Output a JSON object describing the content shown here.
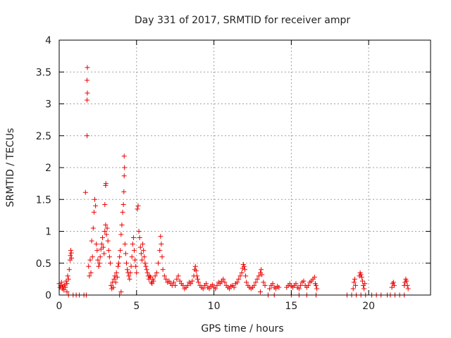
{
  "chart_data": {
    "type": "scatter",
    "title": "Day 331 of 2017, SRMTID for receiver ampr",
    "xlabel": "GPS time / hours",
    "ylabel": "SRMTID / TECUs",
    "xlim": [
      0,
      24
    ],
    "ylim": [
      0,
      4
    ],
    "xticks": [
      0,
      5,
      10,
      15,
      20
    ],
    "yticks": [
      0,
      0.5,
      1,
      1.5,
      2,
      2.5,
      3,
      3.5,
      4
    ],
    "xtick_labels": [
      "0",
      "5",
      "10",
      "15",
      "20"
    ],
    "ytick_labels": [
      "0",
      "0.5",
      "1",
      "1.5",
      "2",
      "2.5",
      "3",
      "3.5",
      "4"
    ],
    "grid": true,
    "marker": "+",
    "series": [
      {
        "name": "ampr",
        "color": "#ee0000",
        "points": [
          [
            0.0,
            0.18
          ],
          [
            0.05,
            0.12
          ],
          [
            0.1,
            0.15
          ],
          [
            0.15,
            0.2
          ],
          [
            0.2,
            0.1
          ],
          [
            0.25,
            0.14
          ],
          [
            0.3,
            0.08
          ],
          [
            0.35,
            0.16
          ],
          [
            0.4,
            0.12
          ],
          [
            0.45,
            0.22
          ],
          [
            0.5,
            0.18
          ],
          [
            0.55,
            0.3
          ],
          [
            0.6,
            0.25
          ],
          [
            0.65,
            0.4
          ],
          [
            0.7,
            0.55
          ],
          [
            0.72,
            0.62
          ],
          [
            0.75,
            0.7
          ],
          [
            0.78,
            0.66
          ],
          [
            0.8,
            0.58
          ],
          [
            0.5,
            0.05
          ],
          [
            0.6,
            0.0
          ],
          [
            0.9,
            0.0
          ],
          [
            1.1,
            0.0
          ],
          [
            1.3,
            0.0
          ],
          [
            1.6,
            0.0
          ],
          [
            1.75,
            0.0
          ],
          [
            1.7,
            1.61
          ],
          [
            1.8,
            2.5
          ],
          [
            1.8,
            3.06
          ],
          [
            1.82,
            3.17
          ],
          [
            1.8,
            3.37
          ],
          [
            1.82,
            3.57
          ],
          [
            1.9,
            0.45
          ],
          [
            1.95,
            0.3
          ],
          [
            2.0,
            0.55
          ],
          [
            2.05,
            0.35
          ],
          [
            2.1,
            0.85
          ],
          [
            2.15,
            0.6
          ],
          [
            2.2,
            1.05
          ],
          [
            2.25,
            1.3
          ],
          [
            2.3,
            1.5
          ],
          [
            2.35,
            1.4
          ],
          [
            2.4,
            0.8
          ],
          [
            2.45,
            0.7
          ],
          [
            2.5,
            0.55
          ],
          [
            2.55,
            0.45
          ],
          [
            2.6,
            0.5
          ],
          [
            2.65,
            0.6
          ],
          [
            2.7,
            0.72
          ],
          [
            2.75,
            0.8
          ],
          [
            2.8,
            0.9
          ],
          [
            2.85,
            0.75
          ],
          [
            2.9,
            0.65
          ],
          [
            2.95,
            1.0
          ],
          [
            3.0,
            1.1
          ],
          [
            3.05,
            0.95
          ],
          [
            3.1,
            1.05
          ],
          [
            3.15,
            0.85
          ],
          [
            3.2,
            0.7
          ],
          [
            3.25,
            0.6
          ],
          [
            3.3,
            0.5
          ],
          [
            2.95,
            1.42
          ],
          [
            3.0,
            1.72
          ],
          [
            3.02,
            1.75
          ],
          [
            3.35,
            0.15
          ],
          [
            3.4,
            0.1
          ],
          [
            3.45,
            0.2
          ],
          [
            3.5,
            0.12
          ],
          [
            3.55,
            0.25
          ],
          [
            3.6,
            0.3
          ],
          [
            3.65,
            0.2
          ],
          [
            3.7,
            0.35
          ],
          [
            3.75,
            0.28
          ],
          [
            3.8,
            0.45
          ],
          [
            3.85,
            0.5
          ],
          [
            3.9,
            0.6
          ],
          [
            3.95,
            0.7
          ],
          [
            4.0,
            0.95
          ],
          [
            4.05,
            1.1
          ],
          [
            4.1,
            1.3
          ],
          [
            4.15,
            1.42
          ],
          [
            4.18,
            1.62
          ],
          [
            4.2,
            1.87
          ],
          [
            4.22,
            2.0
          ],
          [
            4.2,
            2.18
          ],
          [
            4.25,
            0.8
          ],
          [
            4.3,
            0.65
          ],
          [
            4.35,
            0.5
          ],
          [
            4.4,
            0.4
          ],
          [
            4.45,
            0.35
          ],
          [
            4.5,
            0.3
          ],
          [
            4.55,
            0.25
          ],
          [
            4.6,
            0.35
          ],
          [
            4.65,
            0.45
          ],
          [
            4.7,
            0.6
          ],
          [
            4.75,
            0.8
          ],
          [
            4.8,
            0.9
          ],
          [
            4.85,
            0.7
          ],
          [
            4.9,
            0.55
          ],
          [
            4.95,
            0.45
          ],
          [
            5.0,
            0.35
          ],
          [
            3.9,
            0.0
          ],
          [
            4.0,
            0.05
          ],
          [
            5.05,
            1.35
          ],
          [
            5.1,
            1.4
          ],
          [
            5.15,
            1.0
          ],
          [
            5.2,
            0.9
          ],
          [
            5.25,
            0.75
          ],
          [
            5.3,
            0.65
          ],
          [
            5.35,
            0.55
          ],
          [
            5.4,
            0.8
          ],
          [
            5.45,
            0.7
          ],
          [
            5.5,
            0.6
          ],
          [
            5.55,
            0.5
          ],
          [
            5.6,
            0.45
          ],
          [
            5.65,
            0.4
          ],
          [
            5.7,
            0.35
          ],
          [
            5.75,
            0.3
          ],
          [
            5.8,
            0.25
          ],
          [
            5.85,
            0.3
          ],
          [
            5.9,
            0.28
          ],
          [
            5.95,
            0.2
          ],
          [
            6.0,
            0.18
          ],
          [
            6.05,
            0.25
          ],
          [
            6.1,
            0.22
          ],
          [
            6.2,
            0.3
          ],
          [
            6.3,
            0.35
          ],
          [
            6.4,
            0.5
          ],
          [
            6.5,
            0.7
          ],
          [
            6.55,
            0.92
          ],
          [
            6.6,
            0.8
          ],
          [
            6.65,
            0.6
          ],
          [
            6.7,
            0.4
          ],
          [
            6.8,
            0.3
          ],
          [
            6.9,
            0.25
          ],
          [
            7.0,
            0.2
          ],
          [
            7.1,
            0.22
          ],
          [
            7.2,
            0.18
          ],
          [
            7.3,
            0.15
          ],
          [
            7.4,
            0.2
          ],
          [
            7.5,
            0.15
          ],
          [
            7.6,
            0.25
          ],
          [
            7.7,
            0.3
          ],
          [
            7.8,
            0.22
          ],
          [
            7.9,
            0.18
          ],
          [
            8.0,
            0.15
          ],
          [
            8.1,
            0.1
          ],
          [
            8.2,
            0.12
          ],
          [
            8.3,
            0.15
          ],
          [
            8.4,
            0.2
          ],
          [
            8.5,
            0.18
          ],
          [
            8.6,
            0.22
          ],
          [
            8.7,
            0.3
          ],
          [
            8.75,
            0.4
          ],
          [
            8.8,
            0.45
          ],
          [
            8.85,
            0.38
          ],
          [
            8.9,
            0.3
          ],
          [
            8.95,
            0.25
          ],
          [
            9.0,
            0.2
          ],
          [
            9.1,
            0.15
          ],
          [
            9.2,
            0.12
          ],
          [
            9.3,
            0.1
          ],
          [
            9.4,
            0.15
          ],
          [
            9.5,
            0.18
          ],
          [
            9.6,
            0.12
          ],
          [
            9.7,
            0.1
          ],
          [
            9.8,
            0.14
          ],
          [
            9.9,
            0.16
          ],
          [
            10.0,
            0.12
          ],
          [
            10.1,
            0.1
          ],
          [
            10.2,
            0.15
          ],
          [
            10.3,
            0.2
          ],
          [
            10.4,
            0.18
          ],
          [
            10.5,
            0.22
          ],
          [
            10.6,
            0.25
          ],
          [
            10.7,
            0.2
          ],
          [
            10.8,
            0.15
          ],
          [
            10.9,
            0.12
          ],
          [
            11.0,
            0.1
          ],
          [
            11.1,
            0.14
          ],
          [
            11.2,
            0.15
          ],
          [
            11.3,
            0.12
          ],
          [
            11.4,
            0.18
          ],
          [
            11.5,
            0.2
          ],
          [
            11.6,
            0.25
          ],
          [
            11.7,
            0.3
          ],
          [
            11.8,
            0.35
          ],
          [
            11.85,
            0.42
          ],
          [
            11.9,
            0.48
          ],
          [
            11.95,
            0.45
          ],
          [
            12.0,
            0.4
          ],
          [
            12.05,
            0.3
          ],
          [
            12.1,
            0.2
          ],
          [
            12.2,
            0.15
          ],
          [
            12.3,
            0.12
          ],
          [
            12.4,
            0.1
          ],
          [
            12.5,
            0.12
          ],
          [
            12.6,
            0.15
          ],
          [
            12.7,
            0.2
          ],
          [
            12.8,
            0.25
          ],
          [
            12.9,
            0.3
          ],
          [
            13.0,
            0.35
          ],
          [
            13.05,
            0.4
          ],
          [
            13.1,
            0.32
          ],
          [
            13.2,
            0.2
          ],
          [
            13.3,
            0.15
          ],
          [
            13.0,
            0.05
          ],
          [
            13.6,
            0.1
          ],
          [
            13.7,
            0.15
          ],
          [
            13.8,
            0.18
          ],
          [
            13.9,
            0.12
          ],
          [
            14.0,
            0.1
          ],
          [
            14.1,
            0.14
          ],
          [
            14.2,
            0.12
          ],
          [
            13.5,
            0.0
          ],
          [
            13.9,
            0.0
          ],
          [
            14.7,
            0.12
          ],
          [
            14.8,
            0.15
          ],
          [
            14.9,
            0.18
          ],
          [
            15.0,
            0.14
          ],
          [
            15.1,
            0.12
          ],
          [
            15.2,
            0.15
          ],
          [
            15.3,
            0.18
          ],
          [
            15.4,
            0.12
          ],
          [
            15.5,
            0.1
          ],
          [
            15.6,
            0.15
          ],
          [
            15.7,
            0.2
          ],
          [
            15.8,
            0.22
          ],
          [
            15.9,
            0.15
          ],
          [
            16.0,
            0.12
          ],
          [
            16.1,
            0.15
          ],
          [
            16.2,
            0.2
          ],
          [
            16.3,
            0.22
          ],
          [
            16.4,
            0.25
          ],
          [
            16.5,
            0.28
          ],
          [
            16.55,
            0.18
          ],
          [
            16.6,
            0.15
          ],
          [
            16.65,
            0.1
          ],
          [
            15.0,
            0.0
          ],
          [
            15.5,
            0.0
          ],
          [
            16.0,
            0.0
          ],
          [
            16.6,
            0.0
          ],
          [
            18.6,
            0.0
          ],
          [
            18.9,
            0.0
          ],
          [
            19.2,
            0.0
          ],
          [
            19.5,
            0.0
          ],
          [
            19.8,
            0.0
          ],
          [
            19.0,
            0.1
          ],
          [
            19.05,
            0.2
          ],
          [
            19.1,
            0.25
          ],
          [
            19.15,
            0.15
          ],
          [
            19.4,
            0.3
          ],
          [
            19.45,
            0.35
          ],
          [
            19.5,
            0.32
          ],
          [
            19.55,
            0.28
          ],
          [
            19.6,
            0.22
          ],
          [
            19.65,
            0.15
          ],
          [
            19.7,
            0.1
          ],
          [
            19.75,
            0.18
          ],
          [
            20.2,
            0.0
          ],
          [
            20.5,
            0.0
          ],
          [
            20.8,
            0.0
          ],
          [
            21.2,
            0.0
          ],
          [
            21.4,
            0.0
          ],
          [
            21.7,
            0.0
          ],
          [
            22.0,
            0.0
          ],
          [
            22.3,
            0.0
          ],
          [
            21.5,
            0.12
          ],
          [
            21.55,
            0.18
          ],
          [
            21.6,
            0.2
          ],
          [
            21.65,
            0.15
          ],
          [
            22.3,
            0.15
          ],
          [
            22.35,
            0.2
          ],
          [
            22.4,
            0.25
          ],
          [
            22.45,
            0.22
          ],
          [
            22.5,
            0.15
          ],
          [
            22.55,
            0.1
          ]
        ]
      }
    ]
  }
}
